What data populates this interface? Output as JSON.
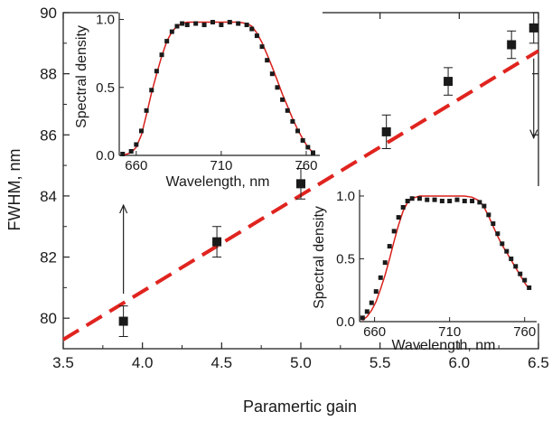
{
  "chart_data": [
    {
      "type": "scatter",
      "title": "",
      "xlabel": "Paramertic gain",
      "ylabel": "FWHM, nm",
      "xlim": [
        3.5,
        6.5
      ],
      "ylim": [
        79,
        90
      ],
      "xticks": [
        "3.5",
        "4.0",
        "4.5",
        "5.0",
        "5.5",
        "6.0",
        "6.5"
      ],
      "yticks": [
        "80",
        "82",
        "84",
        "86",
        "88",
        "90"
      ],
      "points": [
        {
          "x": 3.88,
          "y": 79.9,
          "err": 0.5
        },
        {
          "x": 4.47,
          "y": 82.5,
          "err": 0.5
        },
        {
          "x": 5.0,
          "y": 84.4,
          "err": 0.5
        },
        {
          "x": 5.54,
          "y": 86.1,
          "err": 0.55
        },
        {
          "x": 5.93,
          "y": 87.75,
          "err": 0.45
        },
        {
          "x": 6.33,
          "y": 88.95,
          "err": 0.45
        },
        {
          "x": 6.47,
          "y": 89.5,
          "err": 0.5
        }
      ],
      "fit_line": {
        "x": [
          3.5,
          6.5
        ],
        "y": [
          79.3,
          88.75
        ],
        "style": "dashed",
        "color": "#e0241f"
      },
      "marker_color": "#1a1a1a",
      "arrows": [
        {
          "x": 3.88,
          "y_from": 80.8,
          "y_to": 83.7,
          "direction": "up"
        },
        {
          "x": 6.47,
          "y_from": 88.5,
          "y_to": 85.9,
          "direction": "down"
        }
      ],
      "grid": false
    },
    {
      "type": "line",
      "xlabel": "Wavelength, nm",
      "ylabel": "Spectral density",
      "xlim": [
        650,
        768
      ],
      "ylim": [
        0,
        1.05
      ],
      "xticks": [
        "660",
        "710",
        "760"
      ],
      "yticks": [
        "0.0",
        "0.5",
        "1.0"
      ],
      "series": [
        {
          "style": "markers",
          "color": "#1a1a1a",
          "x": [
            652,
            657,
            660,
            663,
            666,
            669,
            672,
            675,
            678,
            681,
            684,
            687,
            690,
            695,
            700,
            705,
            710,
            715,
            720,
            725,
            728,
            731,
            734,
            737,
            740,
            743,
            746,
            749,
            752,
            755,
            758,
            761,
            764
          ],
          "y": [
            0.01,
            0.03,
            0.08,
            0.18,
            0.33,
            0.48,
            0.62,
            0.74,
            0.84,
            0.91,
            0.95,
            0.97,
            0.96,
            0.97,
            0.96,
            0.98,
            0.96,
            0.98,
            0.97,
            0.96,
            0.93,
            0.88,
            0.8,
            0.7,
            0.6,
            0.5,
            0.41,
            0.33,
            0.25,
            0.18,
            0.11,
            0.06,
            0.02
          ]
        },
        {
          "style": "line",
          "color": "#d9201c",
          "x": [
            652,
            657,
            660,
            663,
            666,
            669,
            672,
            675,
            678,
            681,
            684,
            687,
            690,
            695,
            700,
            705,
            710,
            715,
            720,
            725,
            728,
            731,
            734,
            737,
            740,
            743,
            746,
            749,
            752,
            755,
            758,
            761,
            764
          ],
          "y": [
            0.0,
            0.02,
            0.06,
            0.15,
            0.3,
            0.46,
            0.6,
            0.73,
            0.84,
            0.91,
            0.95,
            0.97,
            0.98,
            0.98,
            0.98,
            0.98,
            0.98,
            0.98,
            0.98,
            0.97,
            0.95,
            0.9,
            0.83,
            0.74,
            0.65,
            0.55,
            0.45,
            0.36,
            0.27,
            0.19,
            0.12,
            0.06,
            0.02
          ]
        }
      ]
    },
    {
      "type": "line",
      "xlabel": "Wavelength, nm",
      "ylabel": "Spectral density",
      "xlim": [
        650,
        768
      ],
      "ylim": [
        0,
        1.05
      ],
      "xticks": [
        "660",
        "710",
        "760"
      ],
      "yticks": [
        "0.0",
        "0.5",
        "1.0"
      ],
      "series": [
        {
          "style": "markers",
          "color": "#1a1a1a",
          "x": [
            652,
            655,
            658,
            661,
            664,
            667,
            670,
            673,
            676,
            679,
            682,
            685,
            690,
            695,
            700,
            705,
            710,
            715,
            720,
            725,
            730,
            733,
            736,
            739,
            742,
            745,
            748,
            751,
            754,
            757,
            760,
            763
          ],
          "y": [
            0.03,
            0.08,
            0.15,
            0.24,
            0.35,
            0.47,
            0.6,
            0.72,
            0.83,
            0.91,
            0.96,
            0.98,
            0.98,
            0.97,
            0.97,
            0.96,
            0.96,
            0.97,
            0.96,
            0.96,
            0.95,
            0.92,
            0.85,
            0.78,
            0.7,
            0.62,
            0.56,
            0.5,
            0.44,
            0.38,
            0.33,
            0.27
          ]
        },
        {
          "style": "line",
          "color": "#d9201c",
          "x": [
            652,
            655,
            658,
            661,
            664,
            667,
            670,
            673,
            676,
            679,
            682,
            685,
            690,
            695,
            700,
            705,
            710,
            715,
            720,
            725,
            730,
            733,
            736,
            739,
            742,
            745,
            748,
            751,
            754,
            757,
            760,
            763
          ],
          "y": [
            0.01,
            0.04,
            0.09,
            0.16,
            0.26,
            0.37,
            0.5,
            0.64,
            0.77,
            0.88,
            0.95,
            0.98,
            1.0,
            1.0,
            1.0,
            1.0,
            1.0,
            1.0,
            1.0,
            0.99,
            0.96,
            0.91,
            0.84,
            0.76,
            0.68,
            0.61,
            0.55,
            0.49,
            0.43,
            0.37,
            0.31,
            0.26
          ]
        }
      ]
    }
  ]
}
